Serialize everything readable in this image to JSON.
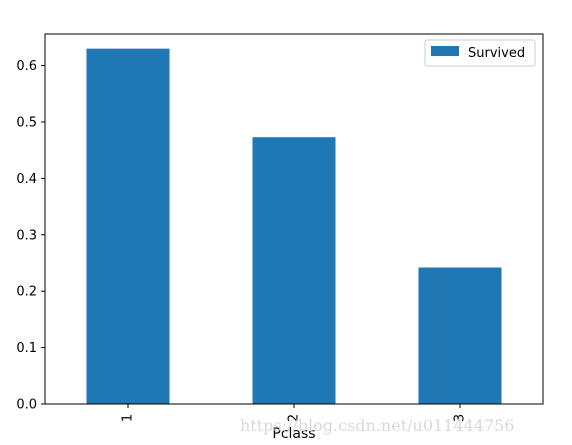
{
  "chart_data": {
    "type": "bar",
    "categories": [
      "1",
      "2",
      "3"
    ],
    "series": [
      {
        "name": "Survived",
        "values": [
          0.63,
          0.473,
          0.242
        ],
        "color": "#1f77b4"
      }
    ],
    "xlabel": "Pclass",
    "ylabel": "",
    "ylim": [
      0,
      0.656
    ],
    "yticks": [
      0.0,
      0.1,
      0.2,
      0.3,
      0.4,
      0.5,
      0.6
    ],
    "ytick_labels": [
      "0.0",
      "0.1",
      "0.2",
      "0.3",
      "0.4",
      "0.5",
      "0.6"
    ],
    "legend_position": "top-right",
    "grid": false,
    "xtick_rotation": "vertical"
  },
  "watermark": "https://blog.csdn.net/u011444756"
}
